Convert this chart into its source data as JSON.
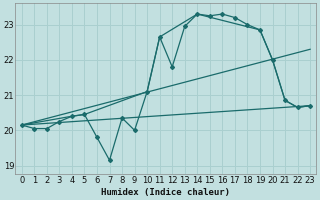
{
  "xlabel": "Humidex (Indice chaleur)",
  "bg_color": "#c2e0e0",
  "grid_color": "#aacfcf",
  "line_color": "#1a6b6b",
  "xlim": [
    -0.5,
    23.5
  ],
  "ylim": [
    18.75,
    23.6
  ],
  "yticks": [
    19,
    20,
    21,
    22,
    23
  ],
  "xticks": [
    0,
    1,
    2,
    3,
    4,
    5,
    6,
    7,
    8,
    9,
    10,
    11,
    12,
    13,
    14,
    15,
    16,
    17,
    18,
    19,
    20,
    21,
    22,
    23
  ],
  "series1_x": [
    0,
    1,
    2,
    3,
    4,
    5,
    6,
    7,
    8,
    9,
    10,
    11,
    12,
    13,
    14,
    15,
    16,
    17,
    18,
    19,
    20,
    21,
    22,
    23
  ],
  "series1_y": [
    20.15,
    20.05,
    20.05,
    20.25,
    20.4,
    20.45,
    19.8,
    19.15,
    20.35,
    20.0,
    21.1,
    22.65,
    21.8,
    22.95,
    23.3,
    23.25,
    23.3,
    23.2,
    23.0,
    22.85,
    22.0,
    20.85,
    20.65,
    20.7
  ],
  "series2_x": [
    0,
    4,
    5,
    10,
    11,
    14,
    19,
    20,
    21,
    22,
    23
  ],
  "series2_y": [
    20.15,
    20.4,
    20.45,
    21.1,
    22.65,
    23.3,
    22.85,
    22.0,
    20.85,
    20.65,
    20.7
  ],
  "line1_x": [
    0,
    23
  ],
  "line1_y": [
    20.15,
    20.7
  ],
  "line2_x": [
    0,
    23
  ],
  "line2_y": [
    20.15,
    22.3
  ]
}
